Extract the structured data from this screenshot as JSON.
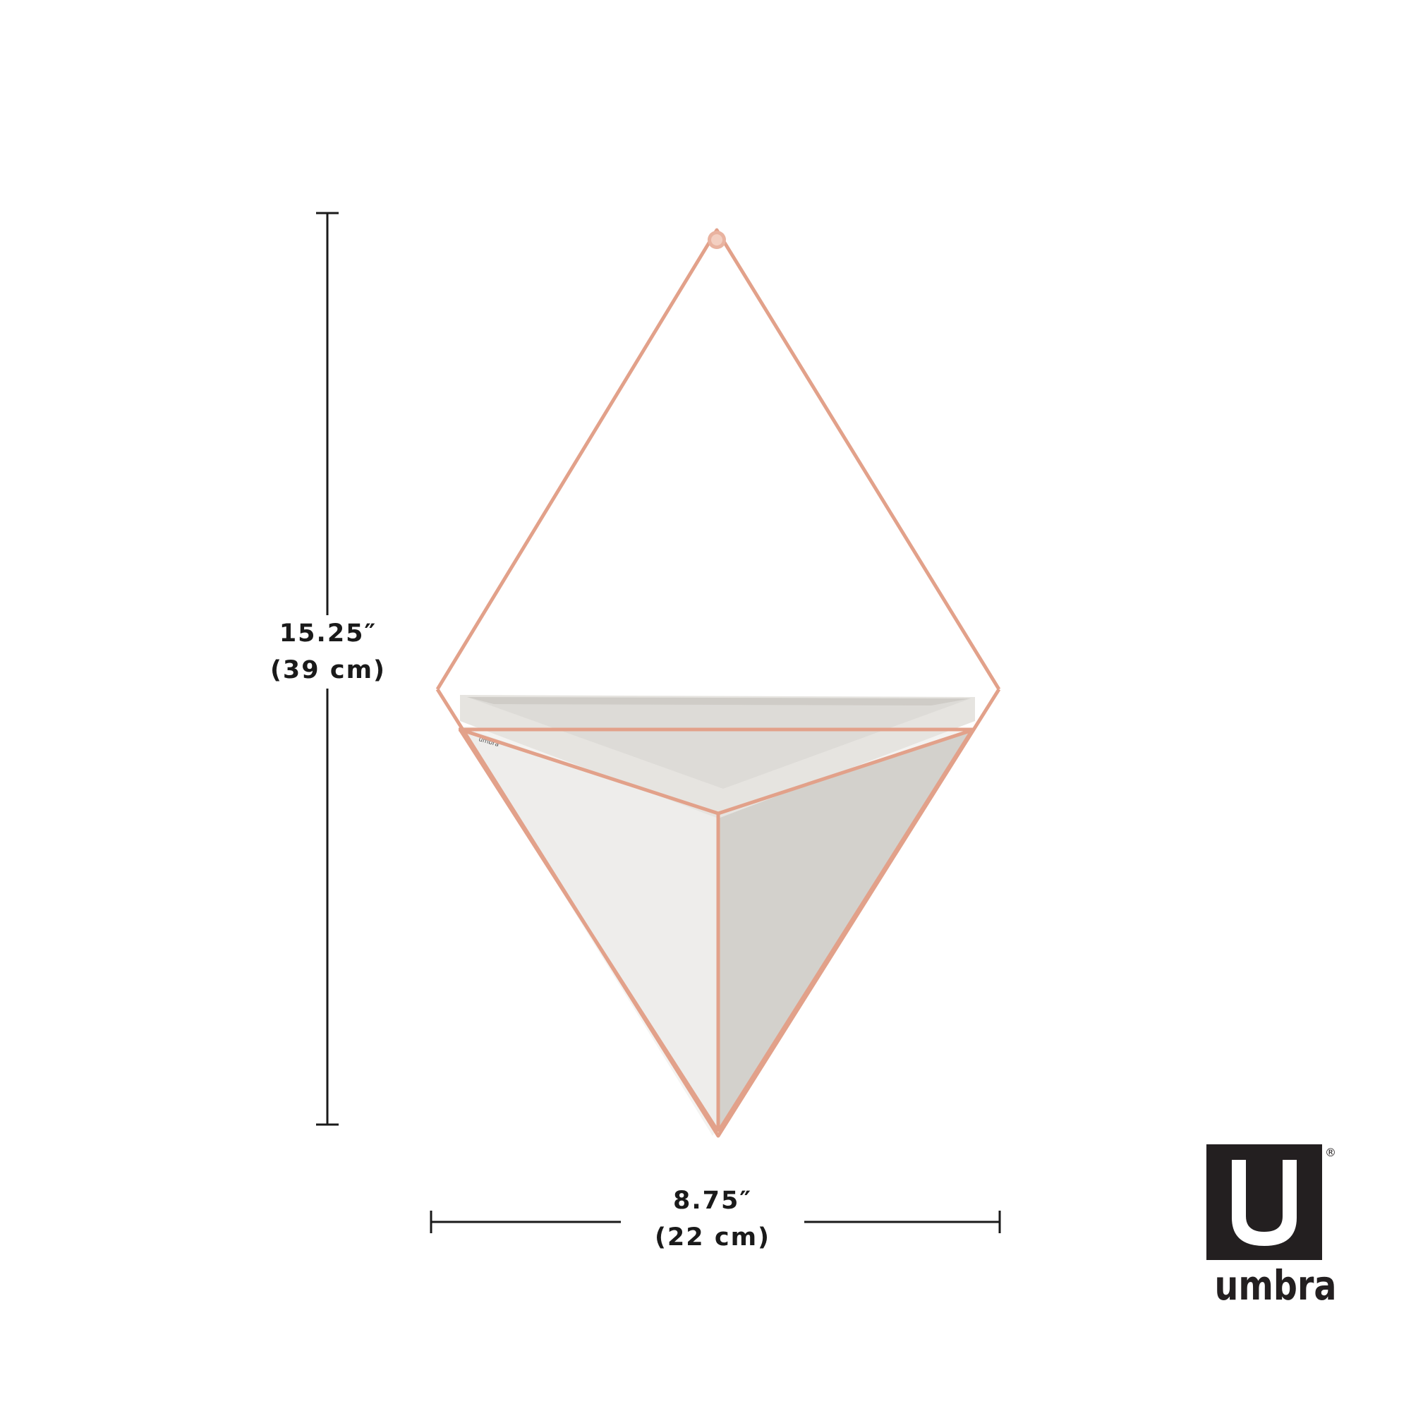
{
  "dimensions": {
    "height": {
      "imperial": "15.25″",
      "metric": "(39 cm)"
    },
    "width": {
      "imperial": "8.75″",
      "metric": "(22 cm)"
    }
  },
  "product": {
    "stamp_text": "umbra",
    "colors": {
      "wire": "#e2a18a",
      "planter_light": "#eeedeb",
      "planter_shade": "#d3d1cc",
      "planter_inner": "#dddbd7"
    }
  },
  "brand": {
    "name": "umbra",
    "registered": "®",
    "mark_color": "#231f20"
  },
  "colors": {
    "dimension_line": "#1a1a1a",
    "background": "#ffffff"
  }
}
